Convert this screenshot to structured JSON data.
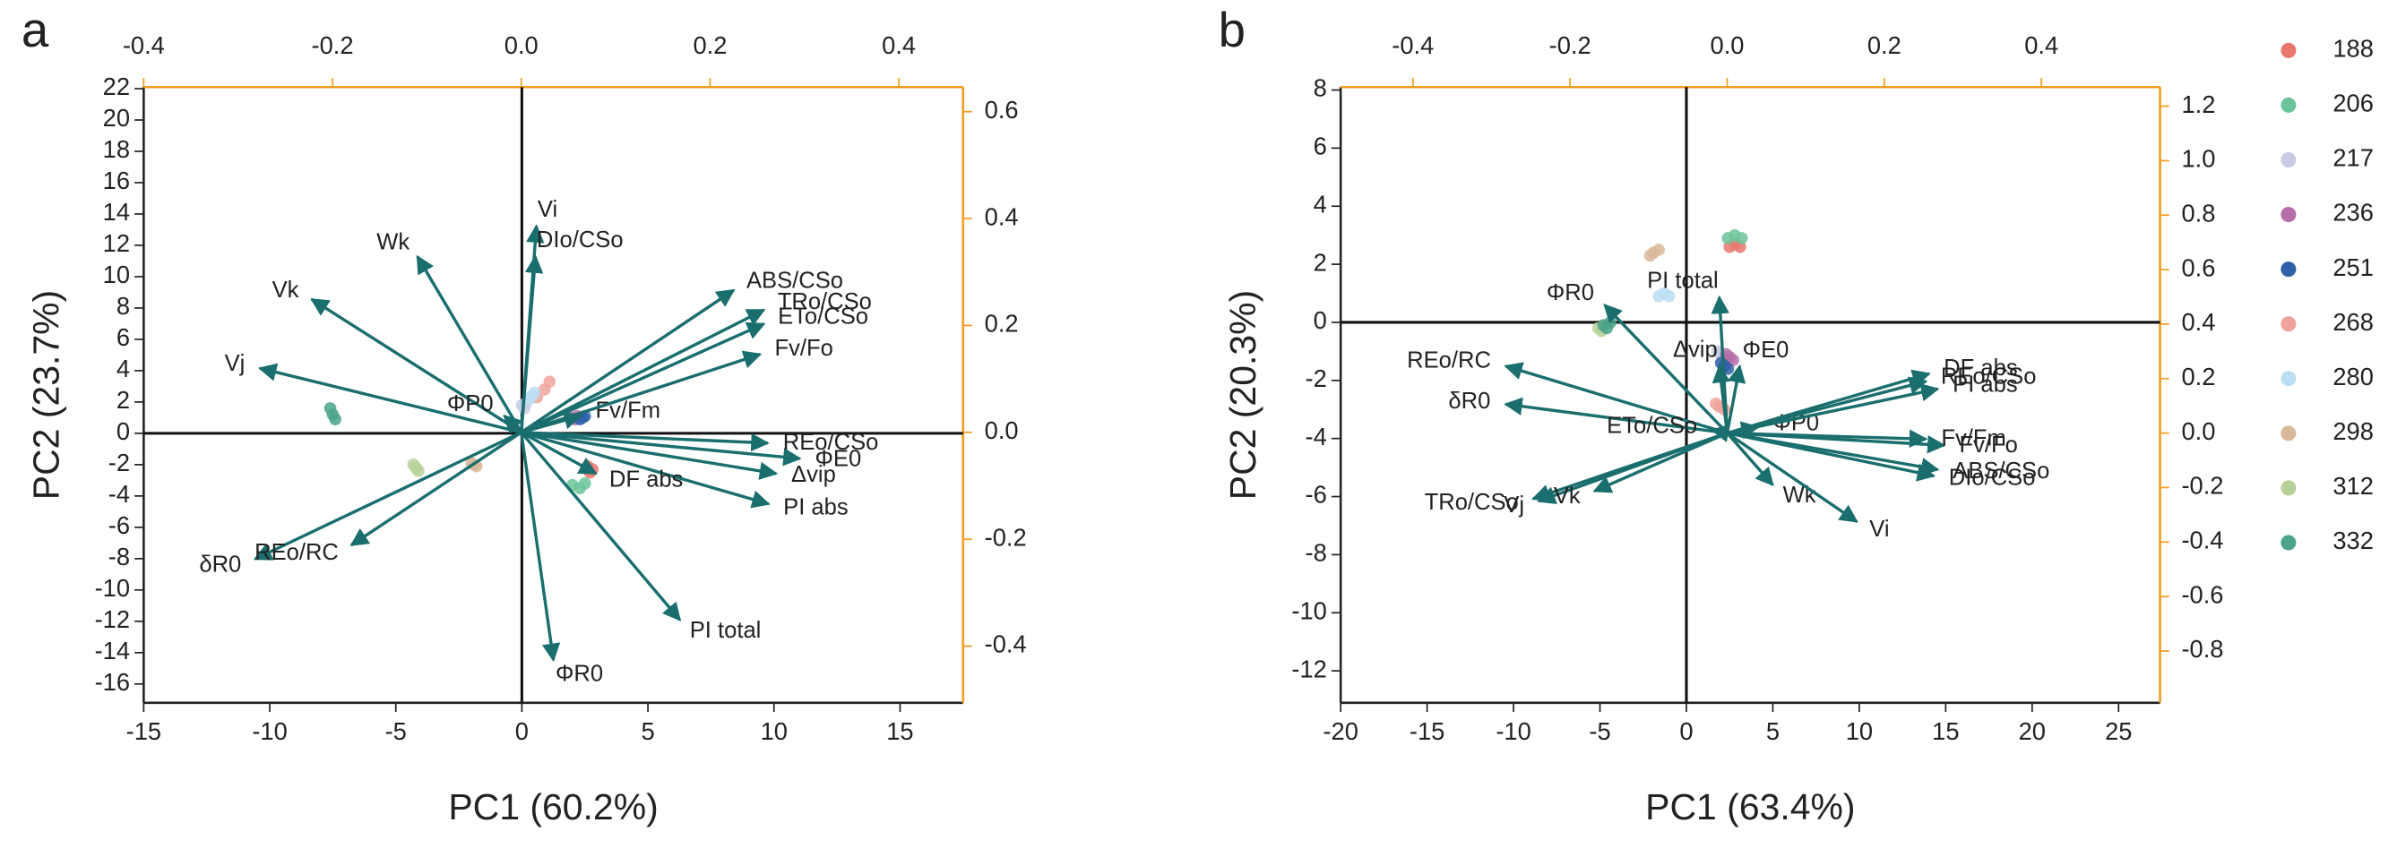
{
  "chart_data": [
    {
      "type": "biplot",
      "panel_label": "a",
      "x_label": "PC1 (60.2%)",
      "y_label": "PC2 (23.7%)",
      "xlim": [
        -15,
        17.5
      ],
      "xticks": [
        -15,
        -10,
        -5,
        0,
        5,
        10,
        15
      ],
      "ylim": [
        -17.2,
        22.1
      ],
      "yticks": [
        -16,
        -14,
        -12,
        -10,
        -8,
        -6,
        -4,
        -2,
        0,
        2,
        4,
        6,
        8,
        10,
        12,
        14,
        16,
        18,
        20,
        22
      ],
      "x2lim": [
        -0.4,
        0.468
      ],
      "x2ticks": [
        -0.4,
        -0.2,
        {
          "value": 0,
          "label": "0.0"
        },
        0.2,
        0.4
      ],
      "y2lim": [
        -0.506,
        0.646
      ],
      "y2ticks": [
        -0.4,
        -0.2,
        {
          "value": 0,
          "label": "0.0"
        },
        0.2,
        0.4,
        0.6
      ],
      "series": [
        {
          "color": "#e8776c",
          "x": [
            2.6,
            2.8,
            2.7
          ],
          "values": [
            -2.1,
            -2.3,
            -2.5
          ]
        },
        {
          "color": "#6cc49a",
          "x": [
            2.0,
            2.3,
            2.5
          ],
          "values": [
            -3.3,
            -3.5,
            -3.2
          ]
        },
        {
          "color": "#c7cbe6",
          "x": [
            0.0,
            0.2,
            0.1
          ],
          "values": [
            1.8,
            2.0,
            1.6
          ]
        },
        {
          "color": "#b56ea8",
          "x": [
            2.0,
            2.2,
            2.1
          ],
          "values": [
            1.0,
            1.1,
            0.9
          ]
        },
        {
          "color": "#2e5fa8",
          "x": [
            2.3,
            2.5,
            2.4
          ],
          "values": [
            0.9,
            1.1,
            1.0
          ]
        },
        {
          "color": "#f0a39a",
          "x": [
            0.6,
            0.9,
            1.1
          ],
          "values": [
            2.3,
            2.8,
            3.3
          ]
        },
        {
          "color": "#bcdff5",
          "x": [
            0.3,
            0.4,
            0.5
          ],
          "values": [
            2.2,
            2.4,
            2.6
          ]
        },
        {
          "color": "#d9b99a",
          "x": [
            -2.0,
            -1.8,
            -1.9
          ],
          "values": [
            -1.9,
            -2.1,
            -2.0
          ]
        },
        {
          "color": "#b8d19a",
          "x": [
            -4.3,
            -4.1,
            -4.2
          ],
          "values": [
            -2.0,
            -2.4,
            -2.2
          ]
        },
        {
          "color": "#4aa38a",
          "x": [
            -7.6,
            -7.5,
            -7.4
          ],
          "values": [
            1.6,
            1.2,
            0.9
          ]
        }
      ],
      "loadings": [
        {
          "name": "Vi",
          "x": 0.016,
          "y": 0.386
        },
        {
          "name": "Wk",
          "x": -0.11,
          "y": 0.329
        },
        {
          "name": "Vk",
          "x": -0.222,
          "y": 0.249
        },
        {
          "name": "Vj",
          "x": -0.277,
          "y": 0.12
        },
        {
          "name": "δR0",
          "x": -0.282,
          "y": -0.237
        },
        {
          "name": "REo/RC",
          "x": -0.18,
          "y": -0.211
        },
        {
          "name": "ΦR0",
          "x": 0.034,
          "y": -0.426
        },
        {
          "name": "PI total",
          "x": 0.168,
          "y": -0.351
        },
        {
          "name": "PI abs",
          "x": 0.262,
          "y": -0.134
        },
        {
          "name": "Δvip",
          "x": 0.27,
          "y": -0.077
        },
        {
          "name": "ΦE0",
          "x": 0.295,
          "y": -0.049
        },
        {
          "name": "REo/CSo",
          "x": 0.261,
          "y": -0.02
        },
        {
          "name": "DF abs",
          "x": 0.079,
          "y": -0.077
        },
        {
          "name": "ΦP0",
          "x": -0.018,
          "y": 0.031
        },
        {
          "name": "Fv/Fm",
          "x": 0.063,
          "y": 0.031
        },
        {
          "name": "Fv/Fo",
          "x": 0.253,
          "y": 0.146
        },
        {
          "name": "ETo/CSo",
          "x": 0.257,
          "y": 0.203
        },
        {
          "name": "TRo/CSo",
          "x": 0.257,
          "y": 0.229
        },
        {
          "name": "ABS/CSo",
          "x": 0.225,
          "y": 0.266
        },
        {
          "name": "DIo/CSo",
          "x": 0.015,
          "y": 0.329
        }
      ]
    },
    {
      "type": "biplot",
      "panel_label": "b",
      "x_label": "PC1 (63.4%)",
      "y_label": "PC2 (20.3%)",
      "legend": true,
      "xlim": [
        -20,
        27.4
      ],
      "xticks": [
        -20,
        -15,
        -10,
        -5,
        0,
        5,
        10,
        15,
        20,
        25
      ],
      "ylim": [
        -13.1,
        8.1
      ],
      "yticks": [
        -12,
        -10,
        -8,
        -6,
        -4,
        -2,
        0,
        2,
        4,
        6,
        8
      ],
      "x2lim": [
        -0.492,
        0.551
      ],
      "x2ticks": [
        -0.4,
        -0.2,
        {
          "value": 0,
          "label": "0.0"
        },
        0.2,
        0.4
      ],
      "y2lim": [
        -0.99,
        1.27
      ],
      "y2ticks": [
        -0.8,
        -0.6,
        -0.4,
        -0.2,
        {
          "value": 0,
          "label": "0.0"
        },
        0.2,
        0.4,
        0.6,
        0.8,
        {
          "value": 1,
          "label": "1.0"
        },
        1.2
      ],
      "series": [
        {
          "name": "188",
          "color": "#e8776c",
          "x": [
            2.5,
            2.8,
            3.1
          ],
          "values": [
            2.6,
            2.7,
            2.6
          ]
        },
        {
          "name": "206",
          "color": "#6cc49a",
          "x": [
            2.4,
            2.8,
            3.2
          ],
          "values": [
            2.9,
            3.0,
            2.9
          ]
        },
        {
          "name": "217",
          "color": "#c7cbe6",
          "x": [
            1.8,
            2.0,
            2.2
          ],
          "values": [
            -1.0,
            -1.1,
            -1.2
          ]
        },
        {
          "name": "236",
          "color": "#b56ea8",
          "x": [
            2.3,
            2.5,
            2.7
          ],
          "values": [
            -1.1,
            -1.2,
            -1.3
          ]
        },
        {
          "name": "251",
          "color": "#2e5fa8",
          "x": [
            2.0,
            2.2,
            2.4
          ],
          "values": [
            -1.4,
            -1.5,
            -1.6
          ]
        },
        {
          "name": "268",
          "color": "#f0a39a",
          "x": [
            1.7,
            1.9,
            2.2
          ],
          "values": [
            -2.8,
            -2.9,
            -3.0
          ]
        },
        {
          "name": "280",
          "color": "#bcdff5",
          "x": [
            -1.6,
            -1.3,
            -1.0
          ],
          "values": [
            0.9,
            1.0,
            0.9
          ]
        },
        {
          "name": "298",
          "color": "#d9b99a",
          "x": [
            -2.1,
            -1.9,
            -1.6
          ],
          "values": [
            2.3,
            2.4,
            2.5
          ]
        },
        {
          "name": "312",
          "color": "#b8d19a",
          "x": [
            -5.1,
            -4.9,
            -4.7
          ],
          "values": [
            -0.2,
            -0.3,
            -0.1
          ]
        },
        {
          "name": "332",
          "color": "#4aa38a",
          "x": [
            -4.8,
            -4.6,
            -4.4
          ],
          "values": [
            -0.1,
            -0.2,
            0.0
          ]
        }
      ],
      "loadings": [
        {
          "name": "PI total",
          "x": -0.01,
          "y": 0.499
        },
        {
          "name": "ΦR0",
          "x": -0.156,
          "y": 0.47
        },
        {
          "name": "REo/RC",
          "x": -0.282,
          "y": 0.246
        },
        {
          "name": "δR0",
          "x": -0.282,
          "y": 0.106
        },
        {
          "name": "TRo/CSo",
          "x": -0.247,
          "y": -0.241
        },
        {
          "name": "Vj",
          "x": -0.24,
          "y": -0.25
        },
        {
          "name": "Vk",
          "x": -0.169,
          "y": -0.213
        },
        {
          "name": "Δvip",
          "x": -0.01,
          "y": 0.246
        },
        {
          "name": "ΦE0",
          "x": 0.016,
          "y": 0.246
        },
        {
          "name": "ETo/CSo",
          "x": -0.019,
          "y": 0.011
        },
        {
          "name": "ΦP0",
          "x": 0.039,
          "y": 0.022
        },
        {
          "name": "Wk",
          "x": 0.058,
          "y": -0.19
        },
        {
          "name": "Vi",
          "x": 0.165,
          "y": -0.325
        },
        {
          "name": "DIo/CSo",
          "x": 0.263,
          "y": -0.157
        },
        {
          "name": "ABS/CSo",
          "x": 0.268,
          "y": -0.134
        },
        {
          "name": "Fv/Fo",
          "x": 0.276,
          "y": -0.045
        },
        {
          "name": "Fv/Fm",
          "x": 0.253,
          "y": -0.022
        },
        {
          "name": "DF abs",
          "x": 0.257,
          "y": 0.218
        },
        {
          "name": "REo/CSo",
          "x": 0.253,
          "y": 0.19
        },
        {
          "name": "PI abs",
          "x": 0.268,
          "y": 0.162
        }
      ]
    }
  ]
}
